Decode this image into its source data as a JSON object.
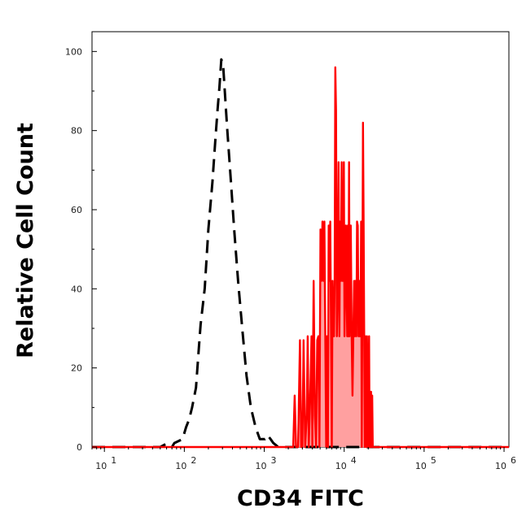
{
  "chart_data": {
    "type": "area",
    "title": "",
    "xlabel": "CD34 FITC",
    "ylabel": "Relative Cell Count",
    "x_scale": "log",
    "xlim": [
      7,
      1150000
    ],
    "ylim": [
      0,
      105
    ],
    "grid": false,
    "legend": "none",
    "x_ticks": [
      {
        "base": "10",
        "exp": "1",
        "value": 10
      },
      {
        "base": "10",
        "exp": "2",
        "value": 100
      },
      {
        "base": "10",
        "exp": "3",
        "value": 1000
      },
      {
        "base": "10",
        "exp": "4",
        "value": 10000
      },
      {
        "base": "10",
        "exp": "5",
        "value": 100000
      },
      {
        "base": "10",
        "exp": "6",
        "value": 1000000
      }
    ],
    "y_ticks": [
      "0",
      "20",
      "40",
      "60",
      "80",
      "100"
    ],
    "series": [
      {
        "style": "dashed",
        "color": "#000000",
        "fill": "none",
        "x": [
          7,
          50,
          62,
          70,
          75,
          95,
          105,
          115,
          125,
          140,
          152,
          160,
          180,
          200,
          225,
          245,
          260,
          275,
          290,
          305,
          330,
          345,
          380,
          420,
          470,
          530,
          600,
          680,
          780,
          880,
          960,
          1020,
          1100,
          1200,
          1300,
          1500,
          100000,
          1150000
        ],
        "y": [
          0,
          0,
          1,
          0,
          1,
          2,
          5,
          7,
          10,
          15,
          25,
          31,
          40,
          55,
          67,
          78,
          85,
          91,
          98,
          97,
          86,
          80,
          68,
          55,
          42,
          30,
          18,
          10,
          5,
          2,
          2,
          2,
          3,
          2,
          1,
          0,
          0,
          0
        ]
      },
      {
        "style": "solid",
        "color": "#ff0000",
        "fill": "#ffa0a0",
        "x": [
          7,
          2300,
          2400,
          2500,
          2650,
          2800,
          2900,
          3000,
          3100,
          3250,
          3400,
          3500,
          3600,
          3750,
          3900,
          4000,
          4150,
          4300,
          4450,
          4600,
          4750,
          4900,
          5050,
          5200,
          5350,
          5500,
          5650,
          5800,
          5950,
          6100,
          6250,
          6400,
          6550,
          6700,
          6850,
          7000,
          7150,
          7300,
          7450,
          7600,
          7750,
          7900,
          8100,
          8300,
          8500,
          8700,
          8900,
          9100,
          9300,
          9500,
          9700,
          9900,
          10100,
          10300,
          10500,
          10700,
          10900,
          11100,
          11300,
          11500,
          11700,
          11900,
          12100,
          12400,
          12700,
          13000,
          13300,
          13600,
          13900,
          14200,
          14500,
          14800,
          15100,
          15400,
          15700,
          16000,
          16300,
          16600,
          16900,
          17200,
          17500,
          17800,
          18100,
          18400,
          18700,
          19000,
          19300,
          19600,
          19900,
          20200,
          20500,
          20800,
          21100,
          21400,
          21700,
          22000,
          22400,
          22800,
          23200,
          23600,
          24000,
          24500,
          25000,
          25500,
          26000,
          26500,
          27000,
          27500,
          28000,
          1150000
        ],
        "y": [
          0,
          0,
          13,
          0,
          0,
          27,
          0,
          0,
          27,
          0,
          8,
          28,
          0,
          12,
          28,
          0,
          42,
          8,
          0,
          27,
          28,
          0,
          55,
          42,
          57,
          42,
          57,
          28,
          0,
          28,
          0,
          56,
          42,
          57,
          28,
          0,
          42,
          28,
          28,
          42,
          96,
          85,
          28,
          42,
          72,
          28,
          57,
          42,
          72,
          42,
          42,
          72,
          28,
          42,
          56,
          42,
          28,
          56,
          28,
          72,
          28,
          42,
          56,
          28,
          13,
          28,
          42,
          28,
          42,
          28,
          57,
          56,
          28,
          42,
          28,
          28,
          57,
          0,
          42,
          82,
          56,
          28,
          0,
          28,
          14,
          0,
          28,
          14,
          0,
          12,
          28,
          0,
          13,
          0,
          14,
          0,
          13,
          0,
          0,
          0,
          0,
          0,
          0,
          0,
          0,
          0,
          0,
          0,
          0,
          0
        ]
      }
    ]
  }
}
